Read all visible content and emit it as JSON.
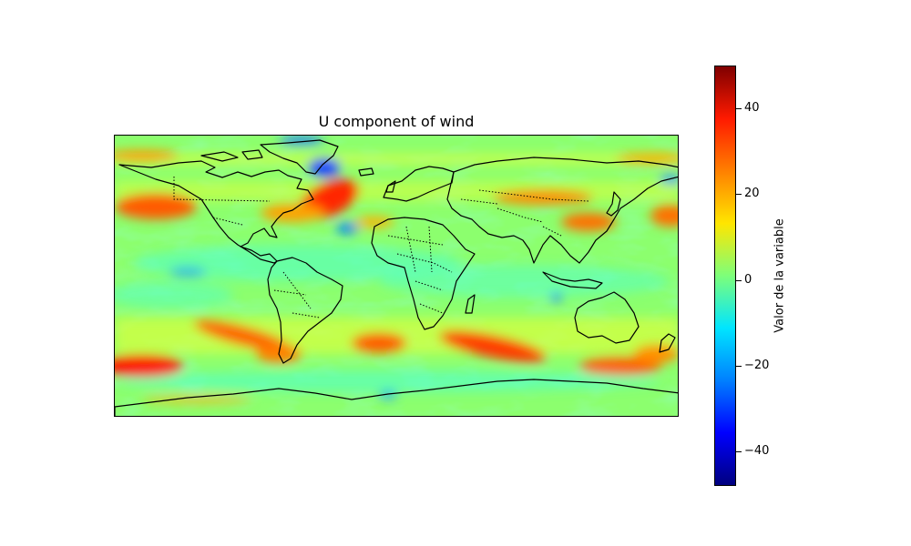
{
  "title": "U component of wind",
  "colorbar": {
    "label": "Valor de la variable",
    "min": -48,
    "max": 50,
    "ticks": [
      "40",
      "20",
      "0",
      "−20",
      "−40"
    ],
    "tick_values": [
      40,
      20,
      0,
      -20,
      -40
    ],
    "colormap": [
      "#00007f",
      "#0000ff",
      "#0080ff",
      "#00e5ff",
      "#7dff7a",
      "#ffe600",
      "#ff8000",
      "#ff1a00",
      "#7f0000"
    ]
  },
  "map": {
    "variable": "U component of wind",
    "projection": "plate-carree",
    "borders": "dotted",
    "coastlines": "solid"
  }
}
